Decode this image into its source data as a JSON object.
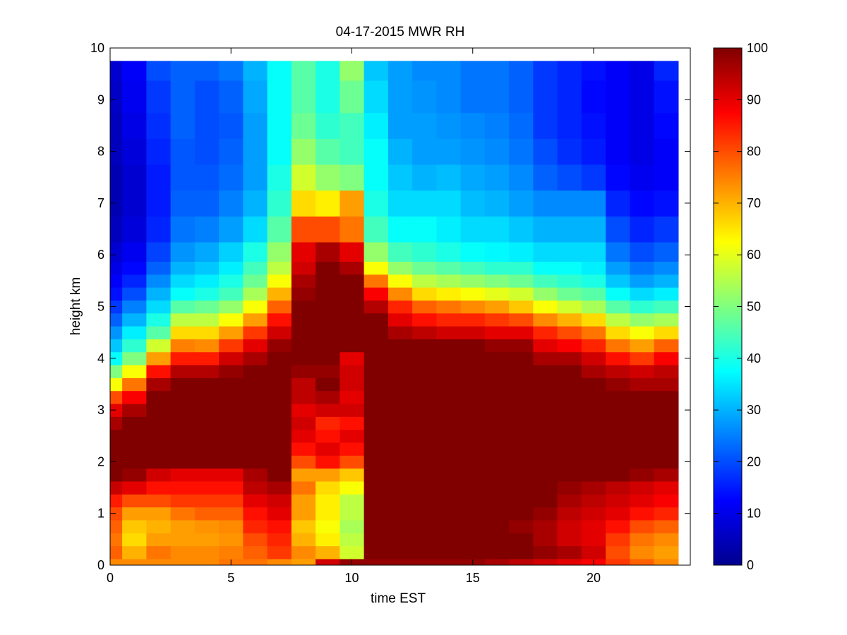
{
  "chart_data": {
    "type": "heatmap",
    "title": "04-17-2015 MWR RH",
    "xlabel": "time EST",
    "ylabel": "height km",
    "xlim": [
      0,
      24
    ],
    "ylim": [
      0,
      10
    ],
    "x_ticks": [
      "0",
      "5",
      "10",
      "15",
      "20"
    ],
    "y_ticks": [
      "0",
      "1",
      "2",
      "3",
      "4",
      "5",
      "6",
      "7",
      "8",
      "9",
      "10"
    ],
    "colorbar": {
      "label_ticks": [
        "0",
        "10",
        "20",
        "30",
        "40",
        "50",
        "60",
        "70",
        "80",
        "90",
        "100"
      ],
      "range": [
        0,
        100
      ],
      "colormap": "jet"
    },
    "time_centers_hours": [
      0,
      1,
      2,
      3,
      4,
      5,
      6,
      7,
      8,
      9,
      10,
      11,
      12,
      13,
      14,
      15,
      16,
      17,
      18,
      19,
      20,
      21,
      22,
      23
    ],
    "data_extent_hours": [
      -0.5,
      23.5
    ],
    "data_top_km": 9.75,
    "profile_heights_km": [
      0,
      0.25,
      0.5,
      0.75,
      1,
      1.25,
      1.5,
      1.75,
      2,
      2.25,
      2.5,
      2.75,
      3,
      3.25,
      3.5,
      3.75,
      4,
      4.25,
      4.5,
      4.75,
      5,
      5.25,
      5.5,
      5.75,
      6,
      6.5,
      7,
      7.5,
      8,
      8.5,
      9,
      9.75
    ],
    "rh_percent": [
      [
        74,
        78,
        76,
        78,
        80,
        85,
        93,
        100,
        100,
        100,
        100,
        96,
        90,
        80,
        62,
        50,
        38,
        32,
        27,
        22,
        18,
        14,
        12,
        10,
        8,
        6,
        5,
        5,
        6,
        6,
        7,
        8
      ],
      [
        74,
        70,
        66,
        68,
        72,
        80,
        90,
        98,
        100,
        100,
        100,
        100,
        96,
        88,
        76,
        62,
        50,
        42,
        36,
        30,
        25,
        20,
        16,
        13,
        11,
        9,
        8,
        8,
        9,
        10,
        11,
        12
      ],
      [
        74,
        76,
        72,
        70,
        72,
        80,
        86,
        92,
        100,
        100,
        100,
        100,
        100,
        100,
        96,
        86,
        72,
        58,
        46,
        40,
        34,
        30,
        26,
        22,
        19,
        16,
        15,
        15,
        16,
        17,
        18,
        20
      ],
      [
        74,
        74,
        72,
        72,
        76,
        82,
        86,
        90,
        100,
        100,
        100,
        100,
        100,
        100,
        100,
        95,
        85,
        75,
        66,
        56,
        46,
        38,
        34,
        30,
        27,
        24,
        22,
        21,
        21,
        22,
        22,
        22
      ],
      [
        74,
        74,
        72,
        73,
        78,
        82,
        86,
        90,
        100,
        100,
        100,
        100,
        100,
        100,
        100,
        95,
        85,
        74,
        66,
        56,
        48,
        40,
        36,
        32,
        29,
        25,
        22,
        21,
        20,
        20,
        20,
        22
      ],
      [
        76,
        75,
        73,
        74,
        78,
        82,
        86,
        90,
        100,
        100,
        100,
        100,
        100,
        100,
        100,
        98,
        92,
        82,
        72,
        62,
        52,
        44,
        40,
        36,
        33,
        28,
        25,
        23,
        22,
        21,
        22,
        24
      ],
      [
        76,
        78,
        80,
        84,
        86,
        90,
        94,
        96,
        100,
        100,
        100,
        100,
        100,
        100,
        100,
        100,
        96,
        90,
        82,
        72,
        62,
        54,
        48,
        44,
        40,
        34,
        30,
        28,
        28,
        28,
        29,
        30
      ],
      [
        74,
        82,
        84,
        86,
        90,
        92,
        96,
        100,
        100,
        100,
        100,
        100,
        100,
        100,
        100,
        100,
        100,
        98,
        92,
        86,
        78,
        70,
        62,
        56,
        52,
        46,
        42,
        40,
        38,
        38,
        38,
        38
      ],
      [
        72,
        74,
        70,
        68,
        72,
        72,
        76,
        72,
        80,
        86,
        90,
        92,
        90,
        94,
        94,
        98,
        100,
        100,
        100,
        100,
        100,
        98,
        96,
        92,
        90,
        80,
        66,
        58,
        52,
        48,
        46,
        46
      ],
      [
        92,
        70,
        64,
        62,
        64,
        64,
        66,
        72,
        86,
        90,
        86,
        84,
        92,
        96,
        100,
        98,
        100,
        100,
        100,
        100,
        100,
        100,
        100,
        100,
        96,
        80,
        64,
        52,
        46,
        42,
        40,
        40
      ],
      [
        98,
        58,
        56,
        54,
        56,
        56,
        62,
        68,
        80,
        86,
        90,
        86,
        92,
        90,
        92,
        92,
        90,
        100,
        100,
        100,
        100,
        100,
        100,
        96,
        90,
        76,
        72,
        50,
        44,
        44,
        48,
        52
      ],
      [
        98,
        100,
        100,
        100,
        100,
        100,
        100,
        100,
        100,
        100,
        100,
        100,
        100,
        100,
        100,
        100,
        100,
        100,
        100,
        100,
        95,
        88,
        76,
        62,
        52,
        44,
        40,
        38,
        38,
        36,
        34,
        32
      ],
      [
        98,
        100,
        100,
        100,
        100,
        100,
        100,
        100,
        100,
        100,
        100,
        100,
        100,
        100,
        100,
        100,
        100,
        100,
        96,
        90,
        84,
        74,
        62,
        52,
        44,
        38,
        34,
        32,
        30,
        28,
        28,
        28
      ],
      [
        98,
        100,
        100,
        100,
        100,
        100,
        100,
        100,
        100,
        100,
        100,
        100,
        100,
        100,
        100,
        100,
        100,
        100,
        94,
        86,
        78,
        66,
        56,
        48,
        42,
        38,
        34,
        30,
        28,
        28,
        27,
        26
      ],
      [
        98,
        100,
        100,
        100,
        100,
        100,
        100,
        100,
        100,
        100,
        100,
        100,
        100,
        100,
        100,
        100,
        100,
        100,
        92,
        84,
        76,
        64,
        54,
        46,
        40,
        36,
        34,
        31,
        28,
        27,
        26,
        26
      ],
      [
        98,
        100,
        100,
        100,
        100,
        100,
        100,
        100,
        100,
        100,
        100,
        100,
        100,
        100,
        100,
        100,
        100,
        100,
        92,
        84,
        74,
        62,
        52,
        44,
        38,
        34,
        31,
        29,
        27,
        26,
        24,
        24
      ],
      [
        96,
        100,
        100,
        100,
        100,
        100,
        100,
        100,
        100,
        100,
        100,
        100,
        100,
        100,
        100,
        100,
        100,
        98,
        90,
        82,
        72,
        60,
        50,
        42,
        37,
        34,
        30,
        28,
        26,
        25,
        24,
        24
      ],
      [
        94,
        100,
        100,
        98,
        100,
        100,
        100,
        100,
        100,
        100,
        100,
        100,
        100,
        100,
        100,
        100,
        100,
        98,
        90,
        80,
        68,
        58,
        48,
        42,
        36,
        32,
        28,
        26,
        24,
        23,
        22,
        22
      ],
      [
        92,
        98,
        96,
        96,
        98,
        100,
        100,
        100,
        100,
        100,
        100,
        100,
        100,
        100,
        100,
        100,
        96,
        90,
        84,
        74,
        62,
        52,
        44,
        38,
        34,
        30,
        26,
        22,
        20,
        18,
        18,
        18
      ],
      [
        90,
        96,
        92,
        92,
        94,
        96,
        98,
        100,
        100,
        100,
        100,
        100,
        100,
        100,
        100,
        100,
        96,
        88,
        80,
        70,
        58,
        48,
        42,
        38,
        34,
        30,
        26,
        20,
        17,
        16,
        16,
        16
      ],
      [
        88,
        92,
        90,
        90,
        92,
        94,
        96,
        100,
        100,
        100,
        100,
        100,
        100,
        100,
        100,
        96,
        92,
        84,
        76,
        66,
        54,
        46,
        40,
        36,
        34,
        30,
        26,
        18,
        15,
        14,
        13,
        14
      ],
      [
        82,
        80,
        82,
        86,
        90,
        92,
        94,
        100,
        100,
        100,
        100,
        100,
        100,
        100,
        98,
        94,
        86,
        76,
        66,
        56,
        46,
        38,
        32,
        28,
        24,
        20,
        16,
        13,
        12,
        12,
        12,
        12
      ],
      [
        78,
        74,
        76,
        80,
        86,
        90,
        92,
        98,
        100,
        100,
        100,
        100,
        100,
        100,
        96,
        92,
        82,
        72,
        62,
        52,
        42,
        34,
        28,
        24,
        20,
        16,
        13,
        11,
        10,
        10,
        10,
        10
      ],
      [
        74,
        72,
        74,
        78,
        84,
        88,
        90,
        96,
        100,
        100,
        100,
        100,
        100,
        100,
        96,
        94,
        88,
        78,
        66,
        54,
        44,
        36,
        30,
        26,
        22,
        18,
        14,
        12,
        12,
        13,
        14,
        16
      ]
    ]
  }
}
